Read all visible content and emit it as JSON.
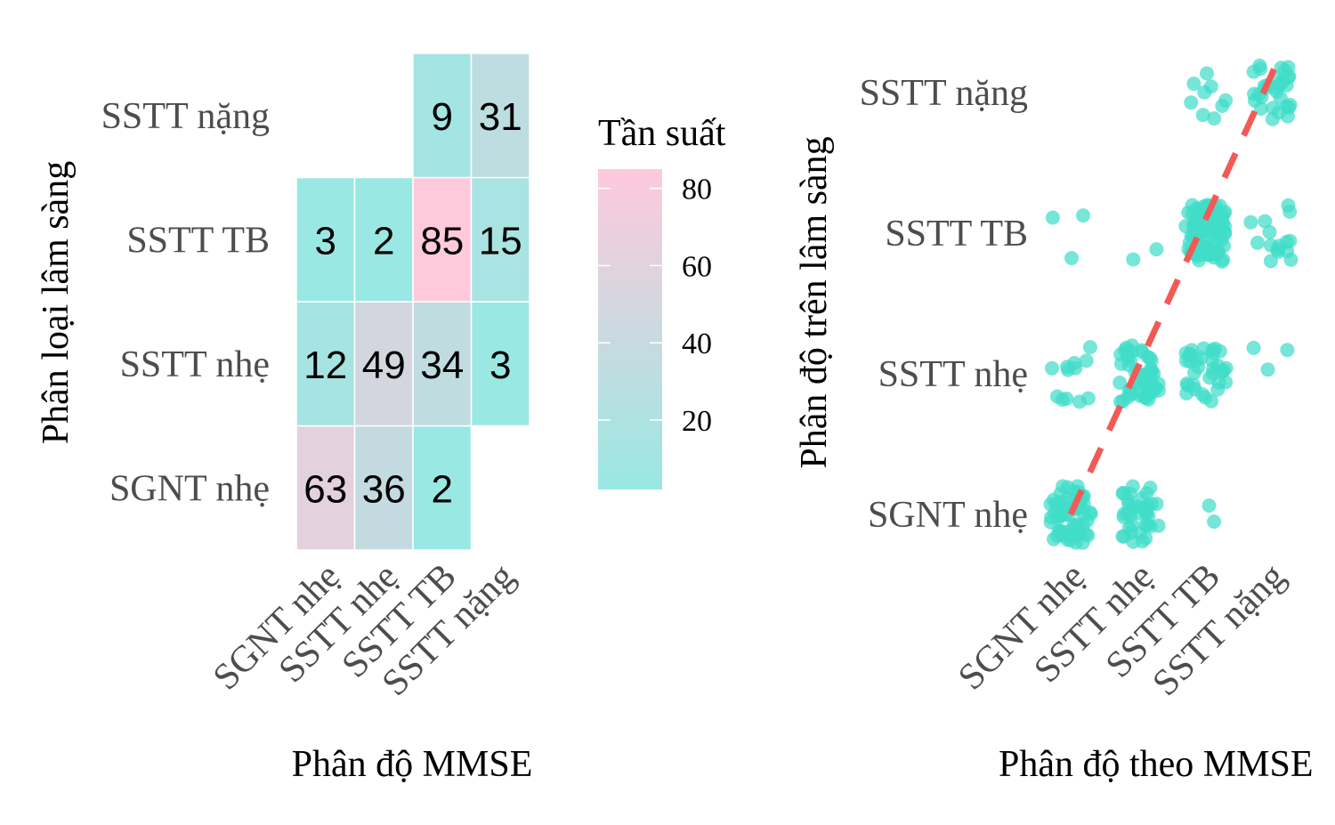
{
  "chart_data": [
    {
      "type": "heatmap",
      "xlabel": "Phân độ MMSE",
      "ylabel": "Phân loại lâm sàng",
      "x_categories": [
        "SGNT nhẹ",
        "SSTT nhẹ",
        "SSTT TB",
        "SSTT nặng"
      ],
      "y_categories": [
        "SGNT nhẹ",
        "SSTT nhẹ",
        "SSTT TB",
        "SSTT nặng"
      ],
      "cells": [
        {
          "x": "SGNT nhẹ",
          "y": "SGNT nhẹ",
          "value": 63,
          "label": "63"
        },
        {
          "x": "SSTT nhẹ",
          "y": "SGNT nhẹ",
          "value": 36,
          "label": "36"
        },
        {
          "x": "SSTT TB",
          "y": "SGNT nhẹ",
          "value": 2,
          "label": "2"
        },
        {
          "x": "SGNT nhẹ",
          "y": "SSTT nhẹ",
          "value": 12,
          "label": "12"
        },
        {
          "x": "SSTT nhẹ",
          "y": "SSTT nhẹ",
          "value": 49,
          "label": "49"
        },
        {
          "x": "SSTT TB",
          "y": "SSTT nhẹ",
          "value": 34,
          "label": "34"
        },
        {
          "x": "SSTT nặng",
          "y": "SSTT nhẹ",
          "value": 3,
          "label": "3"
        },
        {
          "x": "SGNT nhẹ",
          "y": "SSTT TB",
          "value": 3,
          "label": "3"
        },
        {
          "x": "SSTT nhẹ",
          "y": "SSTT TB",
          "value": 2,
          "label": "2"
        },
        {
          "x": "SSTT TB",
          "y": "SSTT TB",
          "value": 85,
          "label": "85"
        },
        {
          "x": "SSTT nặng",
          "y": "SSTT TB",
          "value": 15,
          "label": "15"
        },
        {
          "x": "SSTT TB",
          "y": "SSTT nặng",
          "value": 9,
          "label": "9"
        },
        {
          "x": "SSTT nặng",
          "y": "SSTT nặng",
          "value": 31,
          "label": "31"
        }
      ],
      "color_low": "#99e8e3",
      "color_high": "#ffc9dc",
      "legend": {
        "title": "Tần suất",
        "position": "right",
        "range": [
          2,
          85
        ],
        "ticks": [
          20,
          40,
          60,
          80
        ],
        "tick_labels": [
          "20",
          "40",
          "60",
          "80"
        ]
      },
      "grid": false
    },
    {
      "type": "scatter",
      "jitter": true,
      "xlabel": "Phân độ theo MMSE",
      "ylabel": "Phân độ trên lâm sàng",
      "x_categories": [
        "SGNT nhẹ",
        "SSTT nhẹ",
        "SSTT TB",
        "SSTT nặng"
      ],
      "y_categories": [
        "SGNT nhẹ",
        "SSTT nhẹ",
        "SSTT TB",
        "SSTT nặng"
      ],
      "point_color": "#40dcc9",
      "groups": [
        {
          "x": "SGNT nhẹ",
          "y": "SGNT nhẹ",
          "count": 63
        },
        {
          "x": "SSTT nhẹ",
          "y": "SGNT nhẹ",
          "count": 36
        },
        {
          "x": "SSTT TB",
          "y": "SGNT nhẹ",
          "count": 2
        },
        {
          "x": "SGNT nhẹ",
          "y": "SSTT nhẹ",
          "count": 12
        },
        {
          "x": "SSTT nhẹ",
          "y": "SSTT nhẹ",
          "count": 49
        },
        {
          "x": "SSTT TB",
          "y": "SSTT nhẹ",
          "count": 34
        },
        {
          "x": "SSTT nặng",
          "y": "SSTT nhẹ",
          "count": 3
        },
        {
          "x": "SGNT nhẹ",
          "y": "SSTT TB",
          "count": 3
        },
        {
          "x": "SSTT nhẹ",
          "y": "SSTT TB",
          "count": 2
        },
        {
          "x": "SSTT TB",
          "y": "SSTT TB",
          "count": 85
        },
        {
          "x": "SSTT nặng",
          "y": "SSTT TB",
          "count": 15
        },
        {
          "x": "SSTT TB",
          "y": "SSTT nặng",
          "count": 9
        },
        {
          "x": "SSTT nặng",
          "y": "SSTT nặng",
          "count": 31
        }
      ],
      "reference_line": {
        "style": "dashed",
        "color": "#f25a55",
        "from": [
          1,
          1
        ],
        "to": [
          4,
          4.2
        ]
      },
      "grid": false
    }
  ]
}
